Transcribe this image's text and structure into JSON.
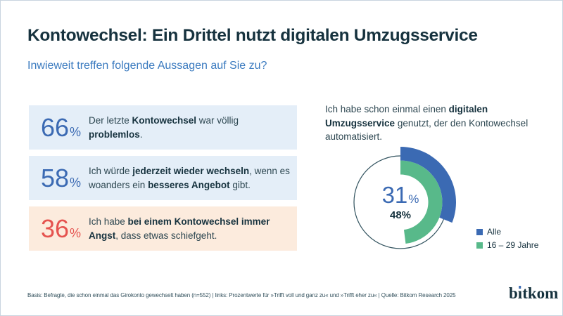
{
  "page": {
    "title": "Kontowechsel: Ein Drittel nutzt digitalen Umzugsservice",
    "subtitle": "Inwieweit treffen folgende Aussagen auf Sie zu?"
  },
  "ui": {
    "percent": "%",
    "stats": [
      {
        "value": "66",
        "segments": [
          {
            "t": "Der letzte ",
            "b": false
          },
          {
            "t": "Kontowechsel",
            "b": true
          },
          {
            "t": " war völlig ",
            "b": false
          },
          {
            "t": "problemlos",
            "b": true
          },
          {
            "t": ".",
            "b": false
          }
        ]
      },
      {
        "value": "58",
        "segments": [
          {
            "t": "Ich würde ",
            "b": false
          },
          {
            "t": "jederzeit wieder wechseln",
            "b": true
          },
          {
            "t": ", wenn es woanders ein ",
            "b": false
          },
          {
            "t": "besseres Angebot",
            "b": true
          },
          {
            "t": " gibt.",
            "b": false
          }
        ]
      },
      {
        "value": "36",
        "segments": [
          {
            "t": "Ich habe ",
            "b": false
          },
          {
            "t": "bei einem Kontowechsel immer Angst",
            "b": true
          },
          {
            "t": ", dass etwas schiefgeht.",
            "b": false
          }
        ]
      }
    ],
    "question_segments": [
      {
        "t": "Ich habe schon einmal einen ",
        "b": false
      },
      {
        "t": "digitalen Umzugsservice",
        "b": true
      },
      {
        "t": " genutzt, der den Kontowechsel automatisiert.",
        "b": false
      }
    ]
  },
  "chart_data": [
    {
      "type": "bar",
      "variant": "stat-boxes",
      "title": "Inwieweit treffen folgende Aussagen auf Sie zu?",
      "unit": "%",
      "categories": [
        "Der letzte Kontowechsel war völlig problemlos.",
        "Ich würde jederzeit wieder wechseln, wenn es woanders ein besseres Angebot gibt.",
        "Ich habe bei einem Kontowechsel immer Angst, dass etwas schiefgeht."
      ],
      "values": [
        66,
        58,
        36
      ]
    },
    {
      "type": "pie",
      "variant": "donut",
      "title": "Ich habe schon einmal einen digitalen Umzugsservice genutzt, der den Kontowechsel automatisiert.",
      "unit": "%",
      "series": [
        {
          "name": "Alle",
          "value": 31
        },
        {
          "name": "16 – 29 Jahre",
          "value": 48
        }
      ],
      "start_angle_deg": 0,
      "direction": "clockwise",
      "legend_position": "right",
      "center_labels": [
        "31%",
        "48%"
      ]
    }
  ],
  "footer": {
    "note": "Basis: Befragte, die schon einmal das Girokonto gewechselt haben (n=552) | links: Prozentwerte für »Trifft voll und ganz zu« und »Trifft eher zu« | Quelle: Bitkom Research 2025",
    "logo_text": "bitkom",
    "logo_parts": {
      "pre": "b",
      "i": "ı",
      "post": "tkom"
    }
  },
  "colors": {
    "accent_blue": "#3b6ab3",
    "subtitle_blue": "#3a7abf",
    "green": "#58b98a",
    "red": "#e5534f",
    "box_blue_bg": "#e4eef8",
    "box_peach_bg": "#fcebdd",
    "dark_navy": "#16323e",
    "text": "#2c4650",
    "ring_outline": "#31525e",
    "footer_text": "#32505c",
    "border": "#c9d4df"
  }
}
